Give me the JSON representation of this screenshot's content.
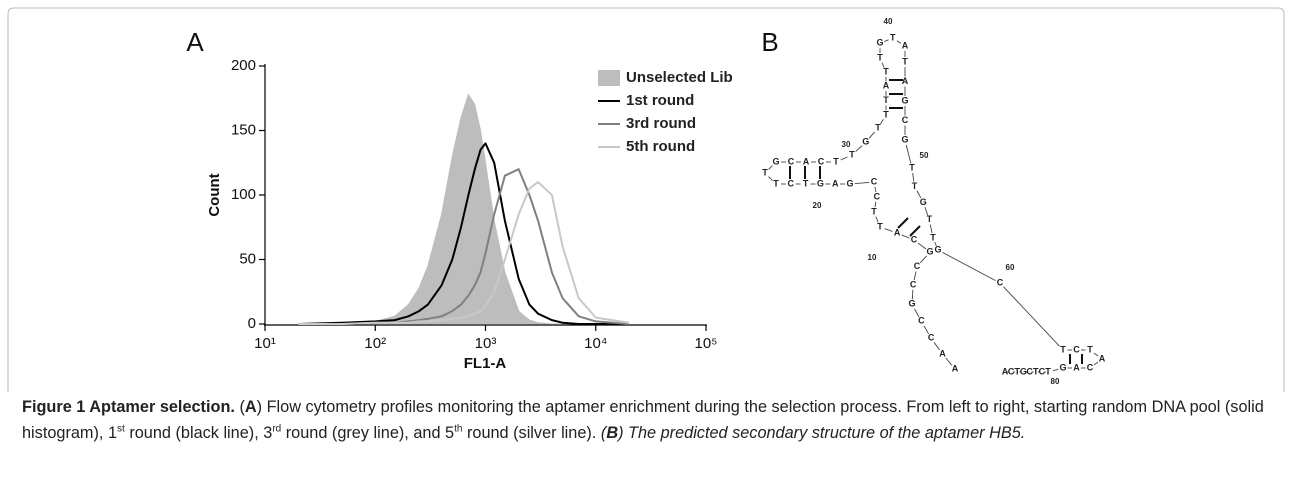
{
  "chart_data": {
    "type": "line",
    "panel_label": "A",
    "x_label": "FL1-A",
    "y_label": "Count",
    "log_x": true,
    "legend": "upper right",
    "xlim": [
      10,
      100000
    ],
    "xticks": [
      {
        "value": 10,
        "label": "10¹"
      },
      {
        "value": 100,
        "label": "10²"
      },
      {
        "value": 1000,
        "label": "10³"
      },
      {
        "value": 10000,
        "label": "10⁴"
      },
      {
        "value": 100000,
        "label": "10⁵"
      }
    ],
    "ylim": [
      0,
      200
    ],
    "yticks": [
      0,
      50,
      100,
      150,
      200
    ],
    "x": [
      20,
      50,
      100,
      150,
      200,
      250,
      300,
      400,
      500,
      600,
      700,
      800,
      900,
      1000,
      1200,
      1500,
      2000,
      2500,
      3000,
      4000,
      5000,
      7000,
      10000,
      20000
    ],
    "series": [
      {
        "name": "Unselected Lib",
        "color": "#bdbdbd",
        "fill": true,
        "values": [
          0,
          1,
          2,
          6,
          15,
          28,
          45,
          85,
          130,
          160,
          178,
          170,
          150,
          125,
          80,
          40,
          10,
          3,
          1,
          0,
          0,
          0,
          0,
          0
        ]
      },
      {
        "name": "1st round",
        "color": "#000000",
        "fill": false,
        "values": [
          0,
          1,
          2,
          3,
          6,
          10,
          15,
          30,
          50,
          75,
          100,
          120,
          135,
          140,
          125,
          80,
          35,
          15,
          8,
          3,
          1,
          0,
          0,
          0
        ]
      },
      {
        "name": "3rd round",
        "color": "#808080",
        "fill": false,
        "values": [
          0,
          0,
          1,
          1,
          2,
          3,
          4,
          6,
          10,
          15,
          22,
          30,
          40,
          55,
          85,
          115,
          120,
          100,
          80,
          40,
          20,
          6,
          2,
          0
        ]
      },
      {
        "name": "5th round",
        "color": "#c8c8c8",
        "fill": false,
        "values": [
          0,
          0,
          1,
          1,
          1,
          2,
          2,
          3,
          4,
          5,
          6,
          8,
          10,
          14,
          25,
          50,
          85,
          105,
          110,
          100,
          60,
          20,
          5,
          1
        ]
      }
    ]
  },
  "structure": {
    "panel_label": "B",
    "bases": [
      "A",
      "A",
      "C",
      "C",
      "G",
      "C",
      "C",
      "G",
      "C",
      "A",
      "T",
      "T",
      "C",
      "C",
      "G",
      "A",
      "G",
      "T",
      "C",
      "T",
      "T",
      "G",
      "C",
      "A",
      "C",
      "T",
      "T",
      "G",
      "T",
      "T",
      "T",
      "A",
      "T",
      "T",
      "G",
      "T",
      "A",
      "T",
      "A",
      "G",
      "C",
      "G",
      "T",
      "T",
      "G",
      "T",
      "T",
      "G",
      "C",
      "T",
      "C",
      "T",
      "A",
      "C",
      "A",
      "G",
      "T",
      "C",
      "T",
      "C",
      "G",
      "T",
      "C",
      "A"
    ],
    "position_labels": [
      10,
      20,
      30,
      40,
      50,
      60,
      80
    ]
  },
  "caption": {
    "label": "Figure 1 Aptamer selection.",
    "parts": [
      "(",
      "A",
      ") Flow cytometry profiles monitoring the aptamer enrichment during the selection process. From left to right, starting random DNA pool (solid histogram), 1",
      "st",
      " round (black line), 3",
      "rd",
      " round (grey line), and 5",
      "th",
      " round (silver line). ",
      "(",
      "B",
      ") The predicted secondary structure of the aptamer HB5."
    ]
  }
}
